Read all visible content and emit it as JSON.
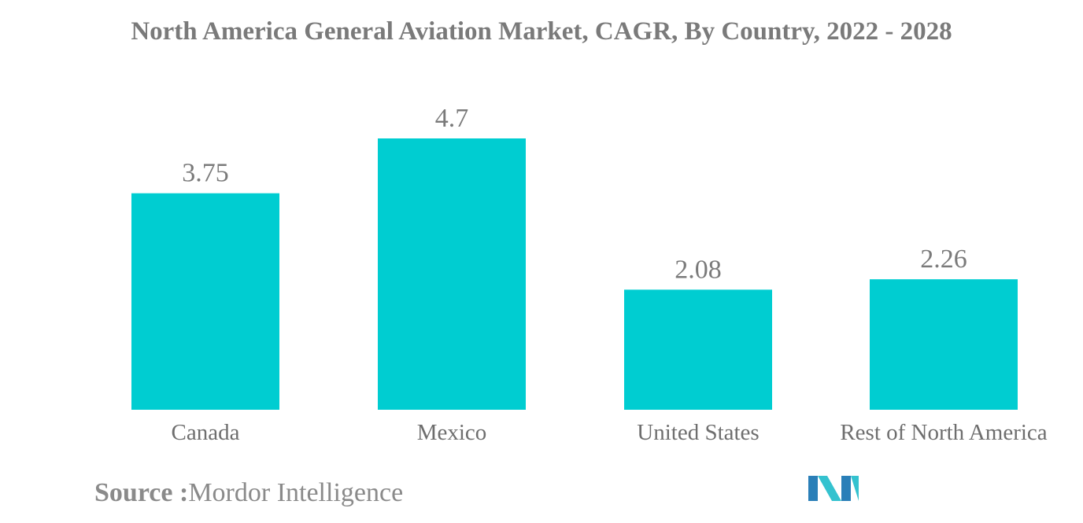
{
  "chart_data": {
    "type": "bar",
    "title": "North America General Aviation Market, CAGR, By Country, 2022 - 2028",
    "categories": [
      "Canada",
      "Mexico",
      "United States",
      "Rest of North America"
    ],
    "values": [
      3.75,
      4.7,
      2.08,
      2.26
    ],
    "data_labels": [
      "3.75",
      "4.7",
      "2.08",
      "2.26"
    ],
    "xlabel": "",
    "ylabel": "",
    "ylim": [
      0,
      4.7
    ],
    "grid": false,
    "legend": "none",
    "bar_color": "#00cdd1"
  },
  "source": {
    "label": "Source :",
    "text": "Mordor Intelligence"
  },
  "logo": {
    "icon": "mordor-intelligence-logo-icon",
    "colors": [
      "#2a7fb8",
      "#34c2cf"
    ]
  }
}
